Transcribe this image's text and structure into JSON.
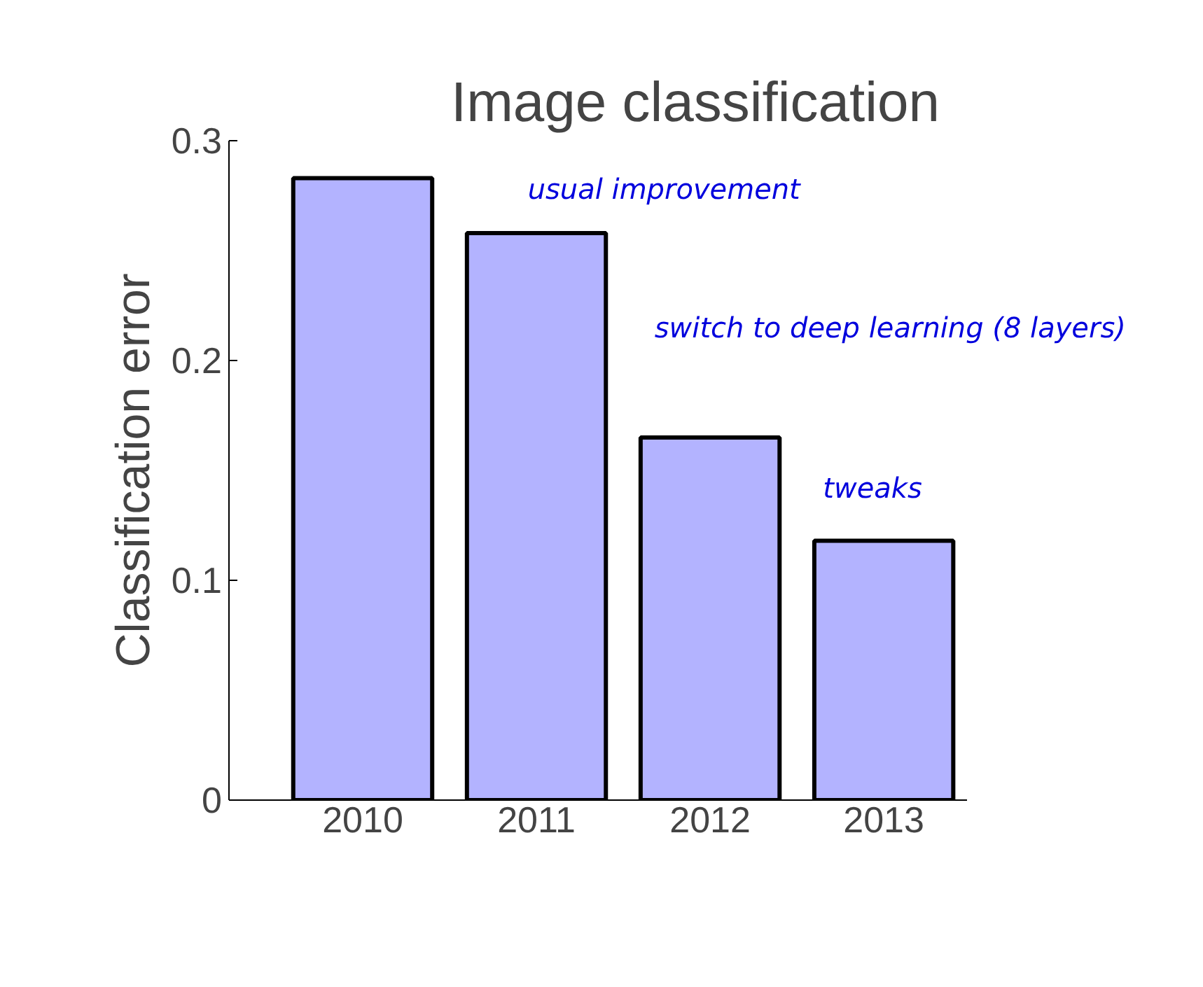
{
  "chart_data": {
    "type": "bar",
    "title": "Image classification",
    "ylabel": "Classification error",
    "categories": [
      "2010",
      "2011",
      "2012",
      "2013"
    ],
    "values": [
      0.283,
      0.258,
      0.165,
      0.118
    ],
    "color": "#b3b3ff",
    "ylim": [
      0,
      0.3
    ],
    "yticks": [
      0,
      0.1,
      0.2,
      0.3
    ],
    "grid": false,
    "annotations": [
      "usual improvement",
      "switch to deep learning (8 layers)",
      "tweaks"
    ]
  }
}
